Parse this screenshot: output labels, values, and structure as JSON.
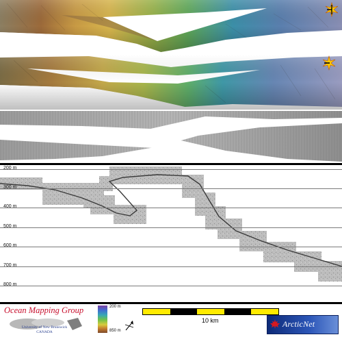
{
  "depth_profile": {
    "labels": [
      "200 m",
      "300 m",
      "400 m",
      "500 m",
      "600 m",
      "700 m",
      "800 m"
    ]
  },
  "legend": {
    "group_name": "Ocean Mapping Group",
    "university_line1": "University of New Brunswick",
    "university_line2": "CANADA",
    "colorbar_top": "200 m",
    "colorbar_bottom": "850 m",
    "scale_label": "10 km",
    "partner_logo": "ArcticNet"
  },
  "icons": {
    "sun_compass": "sun-compass-icon",
    "north_arrow": "north-arrow-icon",
    "maple_leaf": "maple-leaf-icon"
  },
  "colors": {
    "divider": "#000000",
    "omg_red": "#c8102e",
    "unb_blue": "#233a8c",
    "scale_yellow": "#ffeb00"
  }
}
